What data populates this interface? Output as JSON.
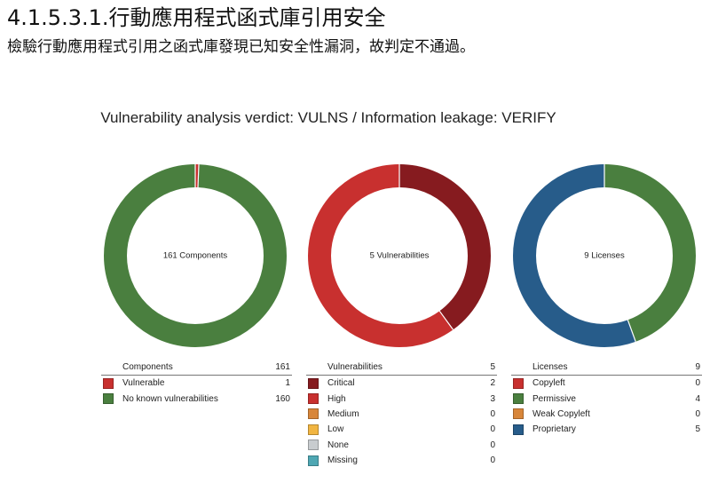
{
  "heading": "4.1.5.3.1.行動應用程式函式庫引用安全",
  "subheading": "檢驗行動應用程式引用之函式庫發現已知安全性漏洞，故判定不通過。",
  "verdict_text": "Vulnerability analysis verdict: VULNS / Information leakage: VERIFY",
  "chart_data": [
    {
      "type": "pie",
      "center_label": "161 Components",
      "legend_title": "Components",
      "total": 161,
      "categories": [
        "Vulnerable",
        "No known vulnerabilities"
      ],
      "values": [
        1,
        160
      ],
      "colors": [
        "#c8302f",
        "#4a7f3f"
      ]
    },
    {
      "type": "pie",
      "center_label": "5 Vulnerabilities",
      "legend_title": "Vulnerabilities",
      "total": 5,
      "categories": [
        "Critical",
        "High",
        "Medium",
        "Low",
        "None",
        "Missing"
      ],
      "values": [
        2,
        3,
        0,
        0,
        0,
        0
      ],
      "colors": [
        "#861b1f",
        "#c8302f",
        "#d8863a",
        "#f1b541",
        "#c8cccf",
        "#4ea7b3"
      ]
    },
    {
      "type": "pie",
      "center_label": "9 Licenses",
      "legend_title": "Licenses",
      "total": 9,
      "categories": [
        "Copyleft",
        "Permissive",
        "Weak Copyleft",
        "Proprietary"
      ],
      "values": [
        0,
        4,
        0,
        5
      ],
      "colors": [
        "#c8302f",
        "#4a7f3f",
        "#d8863a",
        "#275c8a"
      ]
    }
  ]
}
